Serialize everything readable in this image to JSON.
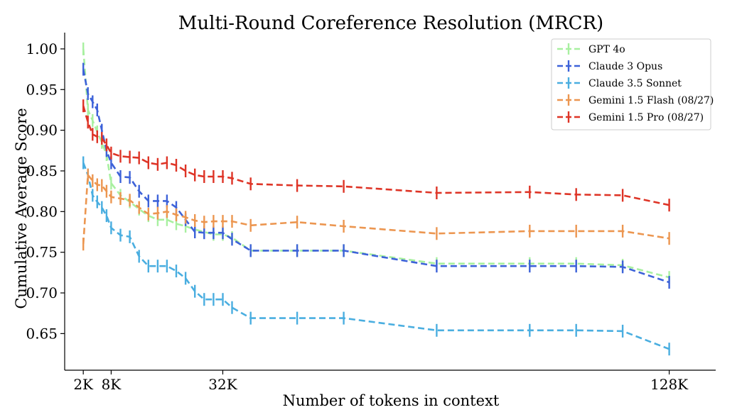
{
  "chart_data": {
    "type": "line",
    "title": "Multi-Round Coreference Resolution (MRCR)",
    "xlabel": "Number of tokens in context",
    "ylabel": "Cumulative Average Score",
    "xlim": [
      -2,
      138
    ],
    "ylim": [
      0.605,
      1.02
    ],
    "x_ticks": [
      2,
      8,
      32,
      128
    ],
    "x_tick_labels": [
      "2K",
      "8K",
      "32K",
      "128K"
    ],
    "y_ticks": [
      0.65,
      0.7,
      0.75,
      0.8,
      0.85,
      0.9,
      0.95,
      1.0
    ],
    "y_tick_labels": [
      "0.65",
      "0.70",
      "0.75",
      "0.80",
      "0.85",
      "0.90",
      "0.95",
      "1.00"
    ],
    "grid": false,
    "legend_position": "top-right",
    "series": [
      {
        "name": "GPT 4o",
        "color": "#a8f0a0",
        "x": [
          2,
          3,
          4,
          5,
          6,
          7,
          8,
          10,
          12,
          14,
          16,
          18,
          20,
          22,
          24,
          26,
          28,
          30,
          32,
          34,
          38,
          48,
          58,
          78,
          98,
          108,
          118,
          128
        ],
        "y": [
          1.0,
          0.925,
          0.912,
          0.898,
          0.885,
          0.87,
          0.835,
          0.82,
          0.812,
          0.803,
          0.795,
          0.79,
          0.79,
          0.785,
          0.782,
          0.778,
          0.775,
          0.772,
          0.772,
          0.768,
          0.752,
          0.752,
          0.752,
          0.736,
          0.736,
          0.736,
          0.734,
          0.719
        ]
      },
      {
        "name": "Claude 3 Opus",
        "color": "#3d62d9",
        "x": [
          2,
          3,
          4,
          5,
          6,
          7,
          8,
          10,
          12,
          14,
          16,
          18,
          20,
          22,
          24,
          26,
          28,
          30,
          32,
          34,
          38,
          48,
          58,
          78,
          98,
          108,
          118,
          128
        ],
        "y": [
          0.975,
          0.945,
          0.935,
          0.925,
          0.9,
          0.875,
          0.86,
          0.843,
          0.842,
          0.825,
          0.813,
          0.813,
          0.813,
          0.805,
          0.79,
          0.775,
          0.774,
          0.774,
          0.774,
          0.766,
          0.752,
          0.752,
          0.752,
          0.733,
          0.733,
          0.733,
          0.732,
          0.713
        ]
      },
      {
        "name": "Claude 3.5 Sonnet",
        "color": "#4aaee0",
        "x": [
          2,
          3,
          4,
          5,
          6,
          7,
          8,
          10,
          12,
          14,
          16,
          18,
          20,
          22,
          24,
          26,
          28,
          30,
          32,
          34,
          38,
          48,
          58,
          78,
          98,
          108,
          118,
          128
        ],
        "y": [
          0.86,
          0.845,
          0.82,
          0.812,
          0.805,
          0.795,
          0.78,
          0.771,
          0.769,
          0.745,
          0.733,
          0.733,
          0.733,
          0.727,
          0.718,
          0.702,
          0.692,
          0.692,
          0.692,
          0.682,
          0.669,
          0.669,
          0.669,
          0.654,
          0.654,
          0.654,
          0.653,
          0.631
        ]
      },
      {
        "name": "Gemini 1.5 Flash (08/27)",
        "color": "#ec9650",
        "x": [
          2,
          3,
          4,
          5,
          6,
          7,
          8,
          10,
          12,
          14,
          16,
          18,
          20,
          22,
          24,
          26,
          28,
          30,
          32,
          34,
          38,
          48,
          58,
          78,
          98,
          108,
          118,
          128
        ],
        "y": [
          0.76,
          0.845,
          0.838,
          0.833,
          0.832,
          0.825,
          0.818,
          0.816,
          0.814,
          0.805,
          0.797,
          0.798,
          0.8,
          0.796,
          0.793,
          0.789,
          0.787,
          0.788,
          0.788,
          0.788,
          0.783,
          0.787,
          0.782,
          0.773,
          0.776,
          0.776,
          0.776,
          0.767
        ]
      },
      {
        "name": "Gemini 1.5 Pro (08/27)",
        "color": "#de3426",
        "x": [
          2,
          3,
          4,
          5,
          6,
          7,
          8,
          10,
          12,
          14,
          16,
          18,
          20,
          22,
          24,
          26,
          28,
          30,
          32,
          34,
          38,
          48,
          58,
          78,
          98,
          108,
          118,
          128
        ],
        "y": [
          0.93,
          0.91,
          0.895,
          0.892,
          0.89,
          0.882,
          0.872,
          0.868,
          0.867,
          0.866,
          0.86,
          0.858,
          0.86,
          0.857,
          0.85,
          0.845,
          0.843,
          0.843,
          0.843,
          0.841,
          0.834,
          0.832,
          0.831,
          0.823,
          0.824,
          0.821,
          0.82,
          0.808
        ]
      }
    ]
  }
}
